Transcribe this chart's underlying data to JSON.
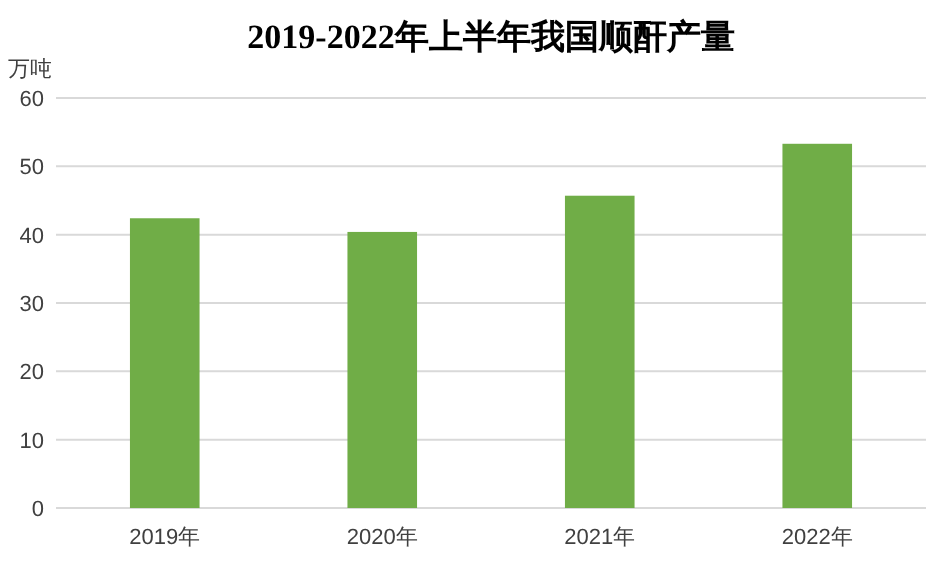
{
  "chart_data": {
    "type": "bar",
    "title": "2019-2022年上半年我国顺酐产量",
    "ylabel": "万吨",
    "categories": [
      "2019年",
      "2020年",
      "2021年",
      "2022年"
    ],
    "values": [
      42.4,
      40.4,
      45.7,
      53.3
    ],
    "color": "#70ad47",
    "ylim": [
      0,
      60
    ],
    "yticks": [
      0,
      10,
      20,
      30,
      40,
      50,
      60
    ],
    "grid": "y"
  }
}
